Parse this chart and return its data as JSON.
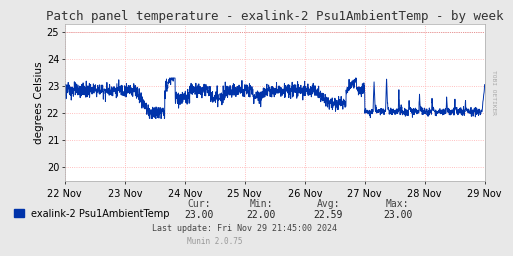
{
  "title": "Patch panel temperature - exalink-2 Psu1AmbientTemp - by week",
  "ylabel": "degrees Celsius",
  "ylim": [
    19.5,
    25.3
  ],
  "yticks": [
    20,
    21,
    22,
    23,
    24,
    25
  ],
  "background_color": "#e8e8e8",
  "plot_bg_color": "#ffffff",
  "line_color": "#0033aa",
  "legend_label": "exalink-2 Psu1AmbientTemp",
  "legend_color": "#0033aa",
  "cur": "23.00",
  "min": "22.00",
  "avg": "22.59",
  "max": "23.00",
  "last_update": "Last update: Fri Nov 29 21:45:00 2024",
  "munin_version": "Munin 2.0.75",
  "x_tick_labels": [
    "22 Nov",
    "23 Nov",
    "24 Nov",
    "25 Nov",
    "26 Nov",
    "27 Nov",
    "28 Nov",
    "29 Nov"
  ],
  "title_fontsize": 9,
  "axis_fontsize": 7.5,
  "tick_fontsize": 7,
  "border_color": "#aaaaaa",
  "grid_color": "#ffaaaa",
  "right_label": "TOBI OETIKER",
  "header_labels": [
    "Cur:",
    "Min:",
    "Avg:",
    "Max:"
  ],
  "header_values": [
    "23.00",
    "22.00",
    "22.59",
    "23.00"
  ]
}
